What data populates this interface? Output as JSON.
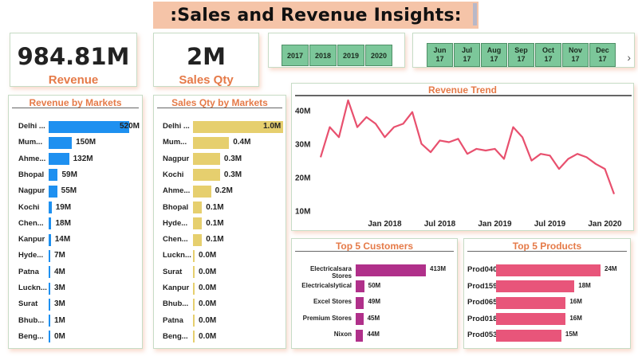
{
  "title": ":Sales and Revenue Insights:",
  "kpis": {
    "revenue": {
      "value": "984.81M",
      "label": "Revenue"
    },
    "sales_qty": {
      "value": "2M",
      "label": "Sales Qty"
    }
  },
  "year_slicer": [
    "2017",
    "2018",
    "2019",
    "2020"
  ],
  "month_slicer": [
    {
      "month": "Jun",
      "year": "17"
    },
    {
      "month": "Jul",
      "year": "17"
    },
    {
      "month": "Aug",
      "year": "17"
    },
    {
      "month": "Sep",
      "year": "17"
    },
    {
      "month": "Oct",
      "year": "17"
    },
    {
      "month": "Nov",
      "year": "17"
    },
    {
      "month": "Dec",
      "year": "17"
    }
  ],
  "colors": {
    "revenue_bars": "#1e90f0",
    "qty_bars": "#e6cf6e",
    "trend_line": "#e8506e",
    "customer_bars": "#b0308a",
    "product_bars": "#e8557a",
    "accent": "#e57a48"
  },
  "chart_data": [
    {
      "type": "bar",
      "orientation": "horizontal",
      "title": "Revenue by Markets",
      "categories": [
        "Delhi ...",
        "Mum...",
        "Ahme...",
        "Bhopal",
        "Nagpur",
        "Kochi",
        "Chen...",
        "Kanpur",
        "Hyde...",
        "Patna",
        "Luckn...",
        "Surat",
        "Bhub...",
        "Beng..."
      ],
      "values": [
        520,
        150,
        132,
        59,
        55,
        19,
        18,
        14,
        7,
        4,
        3,
        3,
        1,
        0
      ],
      "labels": [
        "520M",
        "150M",
        "132M",
        "59M",
        "55M",
        "19M",
        "18M",
        "14M",
        "7M",
        "4M",
        "3M",
        "3M",
        "1M",
        "0M"
      ]
    },
    {
      "type": "bar",
      "orientation": "horizontal",
      "title": "Sales Qty by Markets",
      "categories": [
        "Delhi ...",
        "Mum...",
        "Nagpur",
        "Kochi",
        "Ahme...",
        "Bhopal",
        "Hyde...",
        "Chen...",
        "Luckn...",
        "Surat",
        "Kanpur",
        "Bhub...",
        "Patna",
        "Beng..."
      ],
      "values": [
        1.0,
        0.4,
        0.3,
        0.3,
        0.2,
        0.1,
        0.1,
        0.1,
        0.0,
        0.0,
        0.0,
        0.0,
        0.0,
        0.0
      ],
      "labels": [
        "1.0M",
        "0.4M",
        "0.3M",
        "0.3M",
        "0.2M",
        "0.1M",
        "0.1M",
        "0.1M",
        "0.0M",
        "0.0M",
        "0.0M",
        "0.0M",
        "0.0M",
        "0.0M"
      ]
    },
    {
      "type": "line",
      "title": "Revenue Trend",
      "x_labels": [
        "Jan 2018",
        "Jul 2018",
        "Jan 2019",
        "Jul 2019",
        "Jan 2020"
      ],
      "x_label_index": [
        7,
        13,
        19,
        25,
        31
      ],
      "y_ticks": [
        "10M",
        "20M",
        "30M",
        "40M"
      ],
      "y_tick_values": [
        10,
        20,
        30,
        40
      ],
      "ylim": [
        8,
        43
      ],
      "values": [
        26,
        35,
        32,
        43,
        35,
        38,
        36,
        32,
        35,
        36,
        39.5,
        30,
        27.5,
        31,
        30.5,
        31.5,
        27,
        28.5,
        28,
        28.5,
        25.5,
        35,
        32,
        25,
        27,
        26.5,
        22.5,
        25.5,
        27,
        26,
        24,
        22.5,
        15
      ]
    },
    {
      "type": "bar",
      "orientation": "horizontal",
      "title": "Top 5 Customers",
      "categories": [
        "Electricalsara Stores",
        "Electricalslytical",
        "Excel Stores",
        "Premium Stores",
        "Nixon"
      ],
      "values": [
        413,
        50,
        49,
        45,
        44
      ],
      "labels": [
        "413M",
        "50M",
        "49M",
        "45M",
        "44M"
      ]
    },
    {
      "type": "bar",
      "orientation": "horizontal",
      "title": "Top 5 Products",
      "categories": [
        "Prod040",
        "Prod159",
        "Prod065",
        "Prod018",
        "Prod053"
      ],
      "values": [
        24,
        18,
        16,
        16,
        15
      ],
      "labels": [
        "24M",
        "18M",
        "16M",
        "16M",
        "15M"
      ]
    }
  ]
}
